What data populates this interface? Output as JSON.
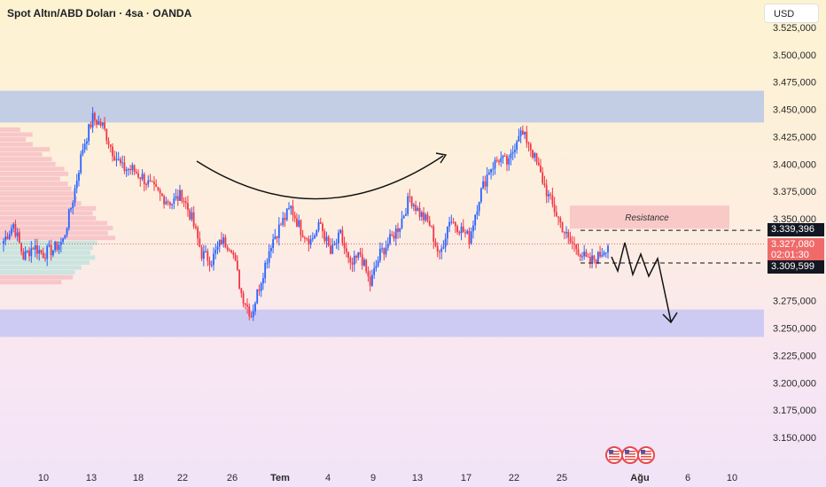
{
  "header": {
    "title": "Spot Altın/ABD Doları · 4sa · OANDA",
    "currency": "USD"
  },
  "annotations": {
    "resistance_label": "Resistance",
    "resistance_price": "3.339,396",
    "support_price": "3.309,599",
    "current_price": "3.327,080",
    "countdown": "02:01:30"
  },
  "colors": {
    "bullish": "#2962ff",
    "bearish": "#f23645",
    "zone": "#b8c7e6",
    "resistance_zone": "#f7c2c2"
  },
  "icons": [
    "us-flag-event-icon",
    "us-flag-event-icon",
    "us-flag-event-icon"
  ],
  "chart_data": {
    "type": "candlestick",
    "y_ticks": [
      "3.525,000",
      "3.500,000",
      "3.475,000",
      "3.450,000",
      "3.425,000",
      "3.400,000",
      "3.375,000",
      "3.350,000",
      "3.275,000",
      "3.250,000",
      "3.225,000",
      "3.200,000",
      "3.175,000",
      "3.150,000"
    ],
    "x_ticks": [
      {
        "label": "10",
        "month": false
      },
      {
        "label": "13",
        "month": false
      },
      {
        "label": "18",
        "month": false
      },
      {
        "label": "22",
        "month": false
      },
      {
        "label": "26",
        "month": false
      },
      {
        "label": "Tem",
        "month": true
      },
      {
        "label": "4",
        "month": false
      },
      {
        "label": "9",
        "month": false
      },
      {
        "label": "13",
        "month": false
      },
      {
        "label": "17",
        "month": false
      },
      {
        "label": "22",
        "month": false
      },
      {
        "label": "25",
        "month": false
      },
      {
        "label": "Ağu",
        "month": true
      },
      {
        "label": "6",
        "month": false
      },
      {
        "label": "10",
        "month": false
      }
    ],
    "y_min": 3125,
    "y_max": 3550,
    "zones": [
      {
        "from": 3438,
        "to": 3467,
        "color": "#b8c7e6"
      },
      {
        "from": 3242,
        "to": 3267,
        "color": "#c5c6f3"
      }
    ],
    "resistance_level": 3339.396,
    "support_level": 3309.599,
    "current_level": 3327.08,
    "waypoints_close": [
      [
        0,
        3330
      ],
      [
        5,
        3345
      ],
      [
        10,
        3315
      ],
      [
        15,
        3325
      ],
      [
        20,
        3318
      ],
      [
        25,
        3322
      ],
      [
        30,
        3330
      ],
      [
        35,
        3368
      ],
      [
        40,
        3415
      ],
      [
        45,
        3442
      ],
      [
        50,
        3435
      ],
      [
        55,
        3412
      ],
      [
        60,
        3396
      ],
      [
        65,
        3395
      ],
      [
        70,
        3388
      ],
      [
        75,
        3378
      ],
      [
        80,
        3370
      ],
      [
        85,
        3365
      ],
      [
        90,
        3372
      ],
      [
        95,
        3350
      ],
      [
        100,
        3318
      ],
      [
        105,
        3312
      ],
      [
        110,
        3330
      ],
      [
        115,
        3325
      ],
      [
        120,
        3282
      ],
      [
        125,
        3262
      ],
      [
        130,
        3295
      ],
      [
        135,
        3328
      ],
      [
        140,
        3345
      ],
      [
        145,
        3360
      ],
      [
        150,
        3340
      ],
      [
        155,
        3330
      ],
      [
        160,
        3345
      ],
      [
        165,
        3318
      ],
      [
        170,
        3335
      ],
      [
        175,
        3305
      ],
      [
        180,
        3318
      ],
      [
        185,
        3290
      ],
      [
        190,
        3318
      ],
      [
        195,
        3330
      ],
      [
        200,
        3345
      ],
      [
        205,
        3370
      ],
      [
        210,
        3355
      ],
      [
        215,
        3345
      ],
      [
        220,
        3315
      ],
      [
        225,
        3350
      ],
      [
        230,
        3342
      ],
      [
        235,
        3332
      ],
      [
        240,
        3370
      ],
      [
        245,
        3395
      ],
      [
        250,
        3405
      ],
      [
        255,
        3400
      ],
      [
        260,
        3430
      ],
      [
        265,
        3420
      ],
      [
        270,
        3395
      ],
      [
        275,
        3370
      ],
      [
        280,
        3350
      ],
      [
        285,
        3330
      ],
      [
        290,
        3322
      ],
      [
        295,
        3310
      ],
      [
        300,
        3315
      ],
      [
        305,
        3327
      ]
    ]
  }
}
